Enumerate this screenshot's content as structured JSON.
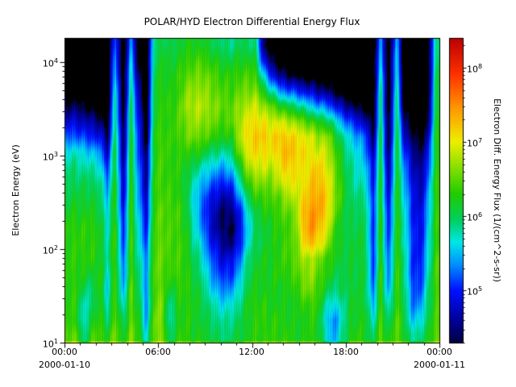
{
  "chart_data": {
    "type": "heatmap",
    "title": "POLAR/HYD  Electron Differential Energy Flux",
    "ylabel": "Electron Energy (eV)",
    "colorbar_label": "Electron Diff. Energy Flux (1/(cm^2-s-sr))",
    "x_date_start": "2000-01-10",
    "x_date_end": "2000-01-11",
    "xticks": [
      "00:00",
      "06:00",
      "12:00",
      "18:00",
      "00:00"
    ],
    "yticks": [
      {
        "base": "10",
        "exp": "1"
      },
      {
        "base": "10",
        "exp": "2"
      },
      {
        "base": "10",
        "exp": "3"
      },
      {
        "base": "10",
        "exp": "4"
      }
    ],
    "cbticks": [
      {
        "base": "10",
        "exp": "5"
      },
      {
        "base": "10",
        "exp": "6"
      },
      {
        "base": "10",
        "exp": "7"
      },
      {
        "base": "10",
        "exp": "8"
      }
    ],
    "x_range_hours": [
      0,
      24
    ],
    "y_log10_range": [
      1.0,
      4.26
    ],
    "color_log10_range": [
      4.3,
      8.4
    ],
    "time_bins": 48,
    "energy_bins": 20,
    "grid_orientation": "columns are time bins 0-24h; each column lists log10(flux) from lowest energy (10 eV) to highest (~1.8e4 eV)",
    "below_threshold": 4.35,
    "background": "#000000",
    "colormap_stops": [
      [
        4.3,
        "#000040"
      ],
      [
        4.55,
        "#00008c"
      ],
      [
        5.0,
        "#0010ff"
      ],
      [
        5.35,
        "#0090ff"
      ],
      [
        5.65,
        "#00e8e8"
      ],
      [
        5.95,
        "#00d060"
      ],
      [
        6.3,
        "#22cc00"
      ],
      [
        6.6,
        "#77dd00"
      ],
      [
        7.0,
        "#eeee00"
      ],
      [
        7.45,
        "#ff9900"
      ],
      [
        7.9,
        "#ff3300"
      ],
      [
        8.4,
        "#bb0000"
      ]
    ],
    "values_log10_flux_columns": [
      [
        6.5,
        6.3,
        6.3,
        6.3,
        6.3,
        6.3,
        6.3,
        6.3,
        6.2,
        6.1,
        6.0,
        5.9,
        5.7,
        5.2,
        4.8,
        4.4,
        4.1,
        4.0,
        4.0,
        4.0
      ],
      [
        6.5,
        6.3,
        6.3,
        6.3,
        6.3,
        6.3,
        6.3,
        6.3,
        6.2,
        6.1,
        6.0,
        5.9,
        5.7,
        5.2,
        4.8,
        4.4,
        4.1,
        4.0,
        4.0,
        4.0
      ],
      [
        5.8,
        5.6,
        5.7,
        6.0,
        6.2,
        6.3,
        6.3,
        6.3,
        6.2,
        6.1,
        6.0,
        5.8,
        5.6,
        5.1,
        4.7,
        4.3,
        4.0,
        4.0,
        4.0,
        4.0
      ],
      [
        6.4,
        6.2,
        5.9,
        5.9,
        6.1,
        6.3,
        6.3,
        6.3,
        6.2,
        6.1,
        6.0,
        5.8,
        5.5,
        5.0,
        4.6,
        4.2,
        4.0,
        4.0,
        4.0,
        4.0
      ],
      [
        6.4,
        6.3,
        6.3,
        6.3,
        6.3,
        6.2,
        6.2,
        6.2,
        6.1,
        6.0,
        5.9,
        5.7,
        5.4,
        4.9,
        4.5,
        4.1,
        4.0,
        4.0,
        4.0,
        4.0
      ],
      [
        6.2,
        5.9,
        5.7,
        5.6,
        5.7,
        5.8,
        5.8,
        5.7,
        5.6,
        5.5,
        5.3,
        5.0,
        4.7,
        4.4,
        4.1,
        4.0,
        4.0,
        4.0,
        4.0,
        4.0
      ],
      [
        6.6,
        6.5,
        6.5,
        6.4,
        6.4,
        6.4,
        6.4,
        6.4,
        6.3,
        6.3,
        6.3,
        6.2,
        6.2,
        6.1,
        6.0,
        5.9,
        5.8,
        5.6,
        5.4,
        5.2
      ],
      [
        6.1,
        5.9,
        5.6,
        5.4,
        5.2,
        5.1,
        5.0,
        4.9,
        4.8,
        4.7,
        4.6,
        4.5,
        4.4,
        4.3,
        4.2,
        4.1,
        4.0,
        4.0,
        4.0,
        4.0
      ],
      [
        6.6,
        6.5,
        6.5,
        6.5,
        6.4,
        6.4,
        6.4,
        6.4,
        6.4,
        6.3,
        6.3,
        6.3,
        6.2,
        6.2,
        6.1,
        6.0,
        5.9,
        5.8,
        5.6,
        5.4
      ],
      [
        6.3,
        6.2,
        6.1,
        6.0,
        5.9,
        5.8,
        5.7,
        5.6,
        5.5,
        5.4,
        5.3,
        5.2,
        5.1,
        5.0,
        4.9,
        4.8,
        4.6,
        4.4,
        4.2,
        4.1
      ],
      [
        5.6,
        5.4,
        5.3,
        5.3,
        5.4,
        5.3,
        5.1,
        5.0,
        4.8,
        4.7,
        4.6,
        4.5,
        4.4,
        4.2,
        4.1,
        4.0,
        4.0,
        4.0,
        4.0,
        4.0
      ],
      [
        6.6,
        6.6,
        6.5,
        6.5,
        6.5,
        6.5,
        6.5,
        6.4,
        6.4,
        6.4,
        6.4,
        6.3,
        6.3,
        6.3,
        6.2,
        6.2,
        6.1,
        6.1,
        6.0,
        5.9
      ],
      [
        6.6,
        6.6,
        6.6,
        6.5,
        6.5,
        6.5,
        6.5,
        6.5,
        6.5,
        6.4,
        6.4,
        6.4,
        6.4,
        6.4,
        6.3,
        6.3,
        6.3,
        6.2,
        6.2,
        6.1
      ],
      [
        5.9,
        5.7,
        5.8,
        6.1,
        6.3,
        6.4,
        6.4,
        6.4,
        6.4,
        6.4,
        6.3,
        6.3,
        6.3,
        6.3,
        6.3,
        6.3,
        6.2,
        6.2,
        6.1,
        6.0
      ],
      [
        6.3,
        6.2,
        6.2,
        6.3,
        6.4,
        6.4,
        6.4,
        6.4,
        6.4,
        6.3,
        6.3,
        6.3,
        6.3,
        6.4,
        6.4,
        6.4,
        6.3,
        6.3,
        6.2,
        6.1
      ],
      [
        6.3,
        6.3,
        6.3,
        6.3,
        6.3,
        6.3,
        6.3,
        6.2,
        6.2,
        6.1,
        6.1,
        6.2,
        6.3,
        6.5,
        6.6,
        6.7,
        6.6,
        6.5,
        6.3,
        6.2
      ],
      [
        6.2,
        6.2,
        6.2,
        6.2,
        6.1,
        6.0,
        5.9,
        5.8,
        5.7,
        5.7,
        5.8,
        6.0,
        6.3,
        6.6,
        6.7,
        6.8,
        6.7,
        6.5,
        6.4,
        6.2
      ],
      [
        6.2,
        6.1,
        6.1,
        6.0,
        5.9,
        5.8,
        5.6,
        5.4,
        5.3,
        5.3,
        5.5,
        5.8,
        6.2,
        6.5,
        6.7,
        6.8,
        6.7,
        6.6,
        6.4,
        6.2
      ],
      [
        6.1,
        6.0,
        5.9,
        5.7,
        5.5,
        5.3,
        5.1,
        4.9,
        4.9,
        5.0,
        5.3,
        5.6,
        6.0,
        6.4,
        6.6,
        6.7,
        6.6,
        6.5,
        6.3,
        6.1
      ],
      [
        6.0,
        5.9,
        5.7,
        5.4,
        5.2,
        5.0,
        4.8,
        4.6,
        4.6,
        4.8,
        5.1,
        5.5,
        5.9,
        6.3,
        6.5,
        6.6,
        6.5,
        6.4,
        6.2,
        6.0
      ],
      [
        5.9,
        5.8,
        5.6,
        5.3,
        5.0,
        4.8,
        4.5,
        4.4,
        4.4,
        4.6,
        5.0,
        5.4,
        5.8,
        6.2,
        6.4,
        6.5,
        6.4,
        6.3,
        6.1,
        5.9
      ],
      [
        6.0,
        5.9,
        5.7,
        5.4,
        5.1,
        4.9,
        4.5,
        4.4,
        4.5,
        4.8,
        5.2,
        5.6,
        6.0,
        6.3,
        6.5,
        6.5,
        6.4,
        6.3,
        6.1,
        5.9
      ],
      [
        6.1,
        6.0,
        5.9,
        5.7,
        5.5,
        5.3,
        5.0,
        4.9,
        5.0,
        5.4,
        5.8,
        6.2,
        6.6,
        6.8,
        6.8,
        6.7,
        6.5,
        6.4,
        6.2,
        6.0
      ],
      [
        6.2,
        6.2,
        6.2,
        6.1,
        6.0,
        5.9,
        5.7,
        5.6,
        5.7,
        6.0,
        6.4,
        6.7,
        7.0,
        7.1,
        7.0,
        6.8,
        6.6,
        6.4,
        6.2,
        6.0
      ],
      [
        6.3,
        6.3,
        6.3,
        6.2,
        6.2,
        6.1,
        6.0,
        6.0,
        6.1,
        6.3,
        6.6,
        6.9,
        7.1,
        7.2,
        7.1,
        6.9,
        6.6,
        6.4,
        6.1,
        5.9
      ],
      [
        6.3,
        6.3,
        6.3,
        6.2,
        6.2,
        6.2,
        6.1,
        6.1,
        6.2,
        6.4,
        6.6,
        6.9,
        7.1,
        7.2,
        7.0,
        6.7,
        6.2,
        5.6,
        4.9,
        4.4
      ],
      [
        6.3,
        6.3,
        6.2,
        6.2,
        6.2,
        6.2,
        6.2,
        6.2,
        6.3,
        6.4,
        6.6,
        6.8,
        7.0,
        7.1,
        6.9,
        6.5,
        5.8,
        5.0,
        4.4,
        4.1
      ],
      [
        6.3,
        6.3,
        6.2,
        6.2,
        6.3,
        6.3,
        6.3,
        6.3,
        6.4,
        6.5,
        6.8,
        7.0,
        7.2,
        7.2,
        6.9,
        6.3,
        5.4,
        4.6,
        4.1,
        4.0
      ],
      [
        6.3,
        6.2,
        6.2,
        6.2,
        6.3,
        6.4,
        6.4,
        6.4,
        6.5,
        6.7,
        7.0,
        7.2,
        7.3,
        7.2,
        6.8,
        6.1,
        5.2,
        4.4,
        4.0,
        4.0
      ],
      [
        6.2,
        6.2,
        6.2,
        6.3,
        6.4,
        6.5,
        6.5,
        6.5,
        6.6,
        6.8,
        7.0,
        7.1,
        7.2,
        7.1,
        6.7,
        6.0,
        5.1,
        4.3,
        4.0,
        4.0
      ],
      [
        6.2,
        6.2,
        6.3,
        6.5,
        6.6,
        6.7,
        7.0,
        7.2,
        7.2,
        7.1,
        7.0,
        7.0,
        7.1,
        7.0,
        6.5,
        5.8,
        4.9,
        4.2,
        4.0,
        4.0
      ],
      [
        6.3,
        6.3,
        6.4,
        6.6,
        6.7,
        6.8,
        7.3,
        7.5,
        7.5,
        7.3,
        7.2,
        7.1,
        7.0,
        6.9,
        6.4,
        5.6,
        4.8,
        4.1,
        4.0,
        4.0
      ],
      [
        6.2,
        6.2,
        6.3,
        6.4,
        6.5,
        6.6,
        7.1,
        7.3,
        7.4,
        7.4,
        7.3,
        7.2,
        6.9,
        6.7,
        6.2,
        5.4,
        4.6,
        4.1,
        4.0,
        4.0
      ],
      [
        5.7,
        5.6,
        5.8,
        6.1,
        6.3,
        6.4,
        6.8,
        7.0,
        7.2,
        7.2,
        7.1,
        7.0,
        6.9,
        6.7,
        6.1,
        5.3,
        4.5,
        4.0,
        4.0,
        4.0
      ],
      [
        5.4,
        5.3,
        5.6,
        5.9,
        6.1,
        6.2,
        6.3,
        6.4,
        6.6,
        6.7,
        6.7,
        6.6,
        6.5,
        6.3,
        5.8,
        5.0,
        4.3,
        4.0,
        4.0,
        4.0
      ],
      [
        5.8,
        5.7,
        5.8,
        6.0,
        6.0,
        6.1,
        6.1,
        6.1,
        6.2,
        6.3,
        6.3,
        6.2,
        6.1,
        5.9,
        5.4,
        4.7,
        4.1,
        4.0,
        4.0,
        4.0
      ],
      [
        6.2,
        6.1,
        6.1,
        6.1,
        6.1,
        6.1,
        6.1,
        6.0,
        6.0,
        6.0,
        5.9,
        5.9,
        5.8,
        5.6,
        5.1,
        4.5,
        4.0,
        4.0,
        4.0,
        4.0
      ],
      [
        6.3,
        6.2,
        6.2,
        6.1,
        6.1,
        6.1,
        6.1,
        6.1,
        6.0,
        5.9,
        5.8,
        5.7,
        5.6,
        5.4,
        4.9,
        4.3,
        4.0,
        4.0,
        4.0,
        4.0
      ],
      [
        6.2,
        6.2,
        6.1,
        6.1,
        6.1,
        6.1,
        6.1,
        6.0,
        6.0,
        5.9,
        5.7,
        5.6,
        5.4,
        5.2,
        4.7,
        4.2,
        4.0,
        4.0,
        4.0,
        4.0
      ],
      [
        5.9,
        5.7,
        5.4,
        5.2,
        5.1,
        5.0,
        5.0,
        5.0,
        5.0,
        5.0,
        4.9,
        4.8,
        4.6,
        4.4,
        4.2,
        4.0,
        4.0,
        4.0,
        4.0,
        4.0
      ],
      [
        6.5,
        6.4,
        6.4,
        6.4,
        6.4,
        6.3,
        6.3,
        6.3,
        6.3,
        6.2,
        6.2,
        6.2,
        6.1,
        6.1,
        6.0,
        6.0,
        5.9,
        5.8,
        5.6,
        5.4
      ],
      [
        6.1,
        5.9,
        5.6,
        5.3,
        5.2,
        5.1,
        5.0,
        4.9,
        4.8,
        4.7,
        4.6,
        4.4,
        4.3,
        4.2,
        4.1,
        4.0,
        4.0,
        4.0,
        4.0,
        4.0
      ],
      [
        6.5,
        6.5,
        6.4,
        6.4,
        6.4,
        6.4,
        6.3,
        6.3,
        6.3,
        6.3,
        6.2,
        6.2,
        6.2,
        6.1,
        6.1,
        6.0,
        5.9,
        5.8,
        5.7,
        5.5
      ],
      [
        6.2,
        6.1,
        6.0,
        6.0,
        5.9,
        5.9,
        5.8,
        5.8,
        5.7,
        5.6,
        5.5,
        5.3,
        5.1,
        4.8,
        4.5,
        4.2,
        4.0,
        4.0,
        4.0,
        4.0
      ],
      [
        5.8,
        5.5,
        5.3,
        5.2,
        5.1,
        5.1,
        5.1,
        5.1,
        5.0,
        5.0,
        4.9,
        4.8,
        4.6,
        4.4,
        4.2,
        4.0,
        4.0,
        4.0,
        4.0,
        4.0
      ],
      [
        5.9,
        5.6,
        5.3,
        5.1,
        5.0,
        4.9,
        4.9,
        4.8,
        4.8,
        4.7,
        4.6,
        4.5,
        4.4,
        4.2,
        4.1,
        4.0,
        4.0,
        4.0,
        4.0,
        4.0
      ],
      [
        6.1,
        6.0,
        5.9,
        5.8,
        5.7,
        5.6,
        5.5,
        5.5,
        5.4,
        5.3,
        5.2,
        5.0,
        4.8,
        4.6,
        4.3,
        4.1,
        4.0,
        4.0,
        4.0,
        4.0
      ],
      [
        6.5,
        6.4,
        6.4,
        6.4,
        6.4,
        6.4,
        6.3,
        6.3,
        6.3,
        6.3,
        6.3,
        6.2,
        6.2,
        6.2,
        6.1,
        6.1,
        6.0,
        6.0,
        5.9,
        5.8
      ]
    ]
  }
}
